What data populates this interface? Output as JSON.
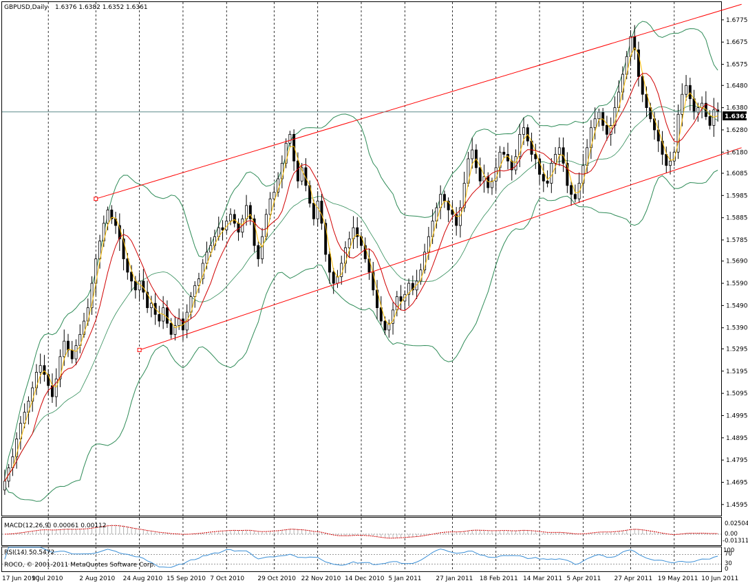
{
  "header": {
    "symbol": "GBPUSD,Daily",
    "ohlc": "1.6376 1.6382 1.6352 1.6361"
  },
  "macd_label": "MACD(12,26,9) 0.00061 0.00112",
  "rsi_label": "RSI(14) 50.5472",
  "copyright": "ROCO, © 2001-2011 MetaQuotes Software Corp.",
  "current_price": "1.6361",
  "macd_axis": [
    "0.02504",
    "0.00",
    "-0.01311"
  ],
  "rsi_axis": [
    "100",
    "70",
    "30",
    "0"
  ],
  "colors": {
    "bg": "#ffffff",
    "candle": "#000000",
    "channel": "#ff0000",
    "bollinger": "#2e8b57",
    "ma_fast": "#ffbf00",
    "ma_slow": "#d00000",
    "macd": "#d60000",
    "rsi": "#3b8fd6",
    "grid": "#000000",
    "price_line": "#5a8a8a"
  },
  "chart_data": {
    "type": "candlestick",
    "title": "GBPUSD,Daily",
    "ylim": [
      1.4545,
      1.6855
    ],
    "y_ticks": [
      "1.6775",
      "1.6675",
      "1.6575",
      "1.6480",
      "1.6380",
      "1.6280",
      "1.6180",
      "1.6085",
      "1.5985",
      "1.5885",
      "1.5785",
      "1.5690",
      "1.5590",
      "1.5490",
      "1.5390",
      "1.5295",
      "1.5195",
      "1.5095",
      "1.4995",
      "1.4895",
      "1.4795",
      "1.4695",
      "1.4595"
    ],
    "x_ticks": [
      "17 Jun 2010",
      "9 Jul 2010",
      "2 Aug 2010",
      "24 Aug 2010",
      "15 Sep 2010",
      "7 Oct 2010",
      "29 Oct 2010",
      "22 Nov 2010",
      "14 Dec 2010",
      "5 Jan 2011",
      "27 Jan 2011",
      "18 Feb 2011",
      "14 Mar 2011",
      "5 Apr 2011",
      "27 Apr 2011",
      "19 May 2011",
      "10 Jun 2011"
    ],
    "closes": [
      1.47,
      1.476,
      1.481,
      1.489,
      1.496,
      1.501,
      1.506,
      1.512,
      1.519,
      1.522,
      1.518,
      1.513,
      1.508,
      1.516,
      1.526,
      1.533,
      1.529,
      1.525,
      1.531,
      1.536,
      1.542,
      1.548,
      1.559,
      1.57,
      1.578,
      1.586,
      1.592,
      1.588,
      1.585,
      1.579,
      1.57,
      1.564,
      1.56,
      1.556,
      1.56,
      1.555,
      1.548,
      1.55,
      1.545,
      1.542,
      1.548,
      1.541,
      1.536,
      1.54,
      1.543,
      1.538,
      1.546,
      1.553,
      1.558,
      1.561,
      1.568,
      1.573,
      1.576,
      1.58,
      1.584,
      1.583,
      1.587,
      1.59,
      1.586,
      1.582,
      1.588,
      1.594,
      1.588,
      1.576,
      1.57,
      1.58,
      1.59,
      1.597,
      1.6,
      1.606,
      1.613,
      1.622,
      1.626,
      1.614,
      1.605,
      1.611,
      1.603,
      1.595,
      1.588,
      1.596,
      1.586,
      1.572,
      1.564,
      1.559,
      1.562,
      1.568,
      1.575,
      1.579,
      1.584,
      1.58,
      1.576,
      1.57,
      1.564,
      1.556,
      1.548,
      1.542,
      1.538,
      1.541,
      1.547,
      1.553,
      1.551,
      1.554,
      1.559,
      1.556,
      1.56,
      1.565,
      1.573,
      1.58,
      1.587,
      1.593,
      1.599,
      1.596,
      1.592,
      1.59,
      1.585,
      1.593,
      1.604,
      1.615,
      1.619,
      1.611,
      1.605,
      1.607,
      1.602,
      1.605,
      1.611,
      1.618,
      1.617,
      1.614,
      1.61,
      1.616,
      1.626,
      1.629,
      1.623,
      1.617,
      1.615,
      1.608,
      1.605,
      1.604,
      1.613,
      1.617,
      1.62,
      1.613,
      1.603,
      1.599,
      1.597,
      1.604,
      1.612,
      1.62,
      1.629,
      1.633,
      1.636,
      1.63,
      1.626,
      1.63,
      1.638,
      1.645,
      1.653,
      1.661,
      1.67,
      1.664,
      1.652,
      1.644,
      1.638,
      1.633,
      1.628,
      1.623,
      1.617,
      1.612,
      1.614,
      1.618,
      1.635,
      1.644,
      1.648,
      1.642,
      1.636,
      1.638,
      1.64,
      1.634,
      1.63,
      1.637,
      1.6361
    ],
    "channel": {
      "upper": [
        {
          "date": "2 Aug 2010",
          "price": 1.597
        },
        {
          "date": "10 Jun 2011",
          "price": 1.6845
        }
      ],
      "lower": [
        {
          "date": "24 Aug 2010",
          "price": 1.529
        },
        {
          "date": "10 Jun 2011",
          "price": 1.62
        }
      ]
    },
    "indicators": [
      "Bollinger Bands",
      "MA fast",
      "MA slow",
      "MACD(12,26,9)",
      "RSI(14)"
    ]
  }
}
